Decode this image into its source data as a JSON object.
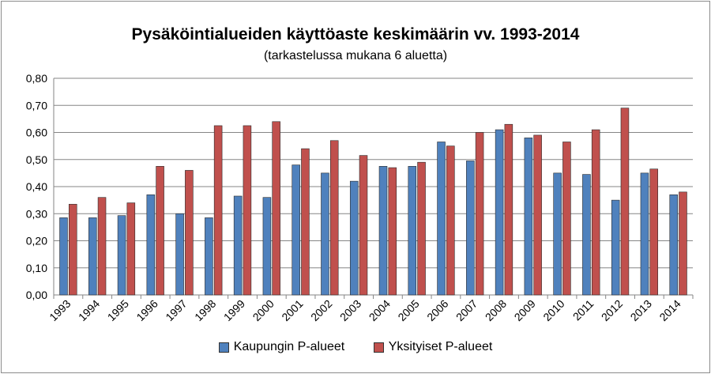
{
  "chart_data": {
    "type": "bar",
    "title": "Pysäköintialueiden käyttöaste keskimäärin vv. 1993-2014",
    "subtitle": "(tarkastelussa mukana 6 aluetta)",
    "categories": [
      "1993",
      "1994",
      "1995",
      "1996",
      "1997",
      "1998",
      "1999",
      "2000",
      "2001",
      "2002",
      "2003",
      "2004",
      "2005",
      "2006",
      "2007",
      "2008",
      "2009",
      "2010",
      "2011",
      "2012",
      "2013",
      "2014"
    ],
    "series": [
      {
        "name": "Kaupungin P-alueet",
        "color": "#4f81bd",
        "values": [
          0.285,
          0.285,
          0.293,
          0.37,
          0.3,
          0.285,
          0.365,
          0.36,
          0.48,
          0.45,
          0.42,
          0.475,
          0.475,
          0.565,
          0.495,
          0.61,
          0.58,
          0.45,
          0.445,
          0.35,
          0.45,
          0.37
        ]
      },
      {
        "name": "Yksityiset P-alueet",
        "color": "#c0504d",
        "values": [
          0.335,
          0.36,
          0.34,
          0.475,
          0.46,
          0.625,
          0.625,
          0.64,
          0.54,
          0.57,
          0.515,
          0.47,
          0.49,
          0.55,
          0.6,
          0.63,
          0.59,
          0.565,
          0.61,
          0.69,
          0.465,
          0.38
        ]
      }
    ],
    "ylim": [
      0,
      0.8
    ],
    "yticks": [
      "0,00",
      "0,10",
      "0,20",
      "0,30",
      "0,40",
      "0,50",
      "0,60",
      "0,70",
      "0,80"
    ],
    "grid": true,
    "legend_position": "bottom"
  }
}
